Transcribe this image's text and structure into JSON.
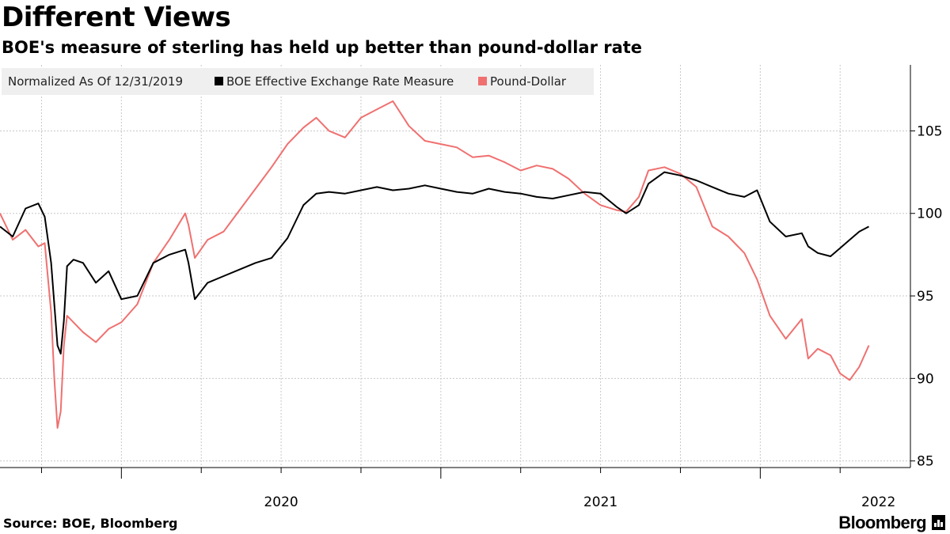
{
  "header": {
    "title": "Different Views",
    "subtitle": "BOE's measure of sterling has held up better than pound-dollar rate"
  },
  "footer": {
    "source": "Source: BOE, Bloomberg",
    "brand": "Bloomberg"
  },
  "colors": {
    "boe": "#000000",
    "pound_dollar": "#f07070",
    "grid": "#c8c8c8",
    "legend_bg": "#efefef"
  },
  "chart_data": {
    "type": "line",
    "title": "Different Views",
    "subtitle": "BOE's measure of sterling has held up better than pound-dollar rate",
    "legend": {
      "placement": "top-left",
      "entries": [
        "Normalized As Of 12/31/2019",
        "BOE Effective Exchange Rate Measure",
        "Pound-Dollar"
      ]
    },
    "x_axis": {
      "range": [
        2019.62,
        2022.47
      ],
      "ticks": [
        "2020",
        "2021",
        "2022"
      ],
      "tick_positions": [
        2020.0,
        2021.0,
        2022.0
      ]
    },
    "y_axis": {
      "position": "right",
      "range": [
        84.6,
        109.0
      ],
      "ticks": [
        85,
        90,
        95,
        100,
        105
      ]
    },
    "grid": true,
    "series": [
      {
        "name": "BOE Effective Exchange Rate Measure",
        "color": "#000000",
        "x": [
          2019.62,
          2019.66,
          2019.7,
          2019.74,
          2019.76,
          2019.78,
          2019.79,
          2019.8,
          2019.81,
          2019.82,
          2019.83,
          2019.85,
          2019.88,
          2019.92,
          2019.96,
          2020.0,
          2020.05,
          2020.1,
          2020.15,
          2020.2,
          2020.21,
          2020.23,
          2020.27,
          2020.32,
          2020.37,
          2020.42,
          2020.47,
          2020.52,
          2020.57,
          2020.61,
          2020.65,
          2020.7,
          2020.75,
          2020.8,
          2020.85,
          2020.9,
          2020.95,
          2021.0,
          2021.05,
          2021.1,
          2021.15,
          2021.2,
          2021.25,
          2021.3,
          2021.35,
          2021.4,
          2021.45,
          2021.5,
          2021.55,
          2021.58,
          2021.62,
          2021.65,
          2021.7,
          2021.75,
          2021.8,
          2021.85,
          2021.9,
          2021.95,
          2021.99,
          2022.03,
          2022.08,
          2022.13,
          2022.15,
          2022.18,
          2022.22,
          2022.25,
          2022.28,
          2022.31,
          2022.34
        ],
        "values": [
          99.2,
          98.6,
          100.3,
          100.6,
          99.8,
          97.0,
          94.5,
          92.0,
          91.5,
          93.5,
          96.8,
          97.2,
          97.0,
          95.8,
          96.5,
          94.8,
          95.0,
          97.0,
          97.5,
          97.8,
          97.0,
          94.8,
          95.8,
          96.2,
          96.6,
          97.0,
          97.3,
          98.5,
          100.5,
          101.2,
          101.3,
          101.2,
          101.4,
          101.6,
          101.4,
          101.5,
          101.7,
          101.5,
          101.3,
          101.2,
          101.5,
          101.3,
          101.2,
          101.0,
          100.9,
          101.1,
          101.3,
          101.2,
          100.4,
          100.0,
          100.5,
          101.8,
          102.5,
          102.3,
          102.0,
          101.6,
          101.2,
          101.0,
          101.4,
          99.5,
          98.6,
          98.8,
          98.0,
          97.6,
          97.4,
          97.9,
          98.4,
          98.9,
          99.2
        ]
      },
      {
        "name": "Pound-Dollar",
        "color": "#f07070",
        "x": [
          2019.62,
          2019.66,
          2019.7,
          2019.74,
          2019.76,
          2019.78,
          2019.79,
          2019.8,
          2019.81,
          2019.82,
          2019.83,
          2019.85,
          2019.88,
          2019.92,
          2019.96,
          2020.0,
          2020.05,
          2020.1,
          2020.15,
          2020.2,
          2020.21,
          2020.23,
          2020.27,
          2020.32,
          2020.37,
          2020.42,
          2020.47,
          2020.52,
          2020.57,
          2020.61,
          2020.65,
          2020.7,
          2020.75,
          2020.8,
          2020.85,
          2020.9,
          2020.95,
          2021.0,
          2021.05,
          2021.1,
          2021.15,
          2021.2,
          2021.25,
          2021.3,
          2021.35,
          2021.4,
          2021.45,
          2021.5,
          2021.55,
          2021.58,
          2021.62,
          2021.65,
          2021.7,
          2021.75,
          2021.8,
          2021.85,
          2021.9,
          2021.95,
          2021.99,
          2022.03,
          2022.08,
          2022.13,
          2022.15,
          2022.18,
          2022.22,
          2022.25,
          2022.28,
          2022.31,
          2022.34
        ],
        "values": [
          100.0,
          98.4,
          99.0,
          98.0,
          98.2,
          94.0,
          90.0,
          87.0,
          88.0,
          92.0,
          93.8,
          93.4,
          92.8,
          92.2,
          93.0,
          93.4,
          94.5,
          97.0,
          98.4,
          100.0,
          99.3,
          97.3,
          98.4,
          98.9,
          100.2,
          101.5,
          102.8,
          104.2,
          105.2,
          105.8,
          105.0,
          104.6,
          105.8,
          106.3,
          106.8,
          105.3,
          104.4,
          104.2,
          104.0,
          103.4,
          103.5,
          103.1,
          102.6,
          102.9,
          102.7,
          102.1,
          101.2,
          100.5,
          100.2,
          100.1,
          101.0,
          102.6,
          102.8,
          102.4,
          101.6,
          99.2,
          98.6,
          97.6,
          96.0,
          93.8,
          92.4,
          93.6,
          91.2,
          91.8,
          91.4,
          90.3,
          89.9,
          90.7,
          92.0
        ]
      }
    ]
  }
}
